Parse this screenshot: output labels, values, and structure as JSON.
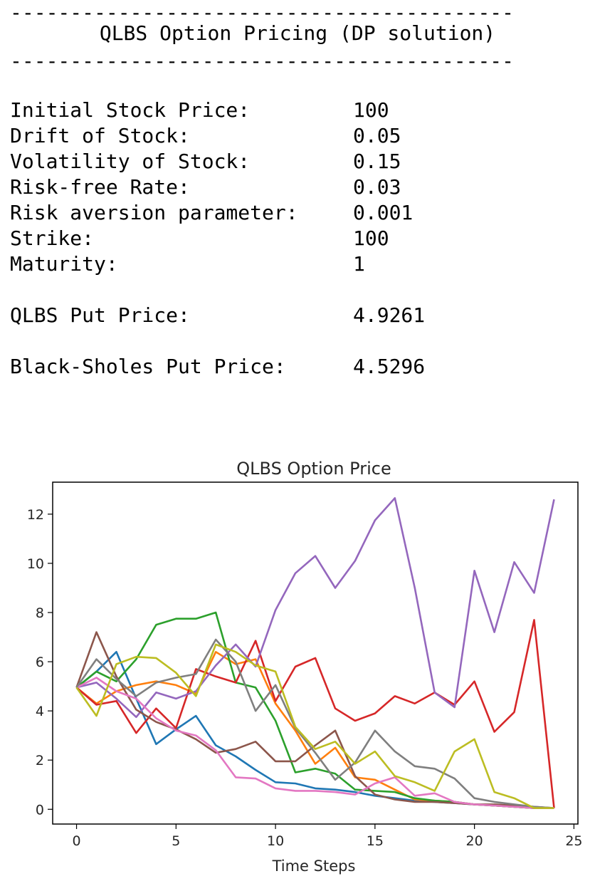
{
  "console": {
    "separator": "------------------------------------------",
    "title": "QLBS Option Pricing (DP solution)",
    "params": [
      {
        "label": "Initial Stock Price:",
        "value": "100"
      },
      {
        "label": "Drift of Stock:",
        "value": "0.05"
      },
      {
        "label": "Volatility of Stock:",
        "value": "0.15"
      },
      {
        "label": "Risk-free Rate:",
        "value": "0.03"
      },
      {
        "label": "Risk aversion parameter:",
        "value": "0.001"
      },
      {
        "label": "Strike:",
        "value": "100"
      },
      {
        "label": "Maturity:",
        "value": "1"
      }
    ],
    "qlbs_put_label": "QLBS Put Price:",
    "qlbs_put_value": "4.9261",
    "bs_put_label": "Black-Sholes Put Price:",
    "bs_put_value": "4.5296"
  },
  "chart_data": {
    "type": "line",
    "title": "QLBS Option Price",
    "xlabel": "Time Steps",
    "ylabel": "",
    "xlim": [
      -1.2,
      25.2
    ],
    "ylim": [
      -0.6,
      13.3
    ],
    "xticks": [
      0,
      5,
      10,
      15,
      20,
      25
    ],
    "yticks": [
      0,
      2,
      4,
      6,
      8,
      10,
      12
    ],
    "grid": false,
    "legend": "none",
    "x": [
      0,
      1,
      2,
      3,
      4,
      5,
      6,
      7,
      8,
      9,
      10,
      11,
      12,
      13,
      14,
      15,
      16,
      17,
      18,
      19,
      20,
      21,
      22,
      23,
      24
    ],
    "series": [
      {
        "color": "#1f77b4",
        "values": [
          4.95,
          5.6,
          6.4,
          4.5,
          2.65,
          3.25,
          3.8,
          2.6,
          2.15,
          1.6,
          1.1,
          1.05,
          0.85,
          0.8,
          0.7,
          0.55,
          0.45,
          0.35,
          0.3,
          0.25,
          0.2,
          0.15,
          0.1,
          0.05,
          0.05
        ]
      },
      {
        "color": "#ff7f0e",
        "values": [
          4.95,
          4.3,
          4.8,
          5.05,
          5.2,
          5.05,
          4.7,
          6.4,
          5.9,
          6.1,
          4.3,
          3.2,
          1.85,
          2.5,
          1.3,
          1.2,
          0.8,
          0.4,
          0.35,
          0.3,
          0.2,
          0.15,
          0.1,
          0.05,
          0.05
        ]
      },
      {
        "color": "#2ca02c",
        "values": [
          4.95,
          5.6,
          5.2,
          6.1,
          7.5,
          7.75,
          7.75,
          8.0,
          5.15,
          4.95,
          3.6,
          1.5,
          1.65,
          1.45,
          0.8,
          0.75,
          0.7,
          0.45,
          0.35,
          0.3,
          0.2,
          0.15,
          0.1,
          0.05,
          0.05
        ]
      },
      {
        "color": "#d62728",
        "values": [
          4.95,
          4.25,
          4.4,
          3.1,
          4.1,
          3.3,
          5.7,
          5.4,
          5.15,
          6.85,
          4.4,
          5.8,
          6.15,
          4.1,
          3.6,
          3.9,
          4.6,
          4.3,
          4.75,
          4.25,
          5.2,
          3.15,
          3.95,
          7.7,
          0.05
        ]
      },
      {
        "color": "#9467bd",
        "values": [
          4.95,
          5.15,
          4.5,
          3.75,
          4.75,
          4.5,
          4.8,
          5.85,
          6.7,
          5.8,
          8.1,
          9.6,
          10.3,
          9.0,
          10.1,
          11.75,
          12.65,
          9.0,
          4.75,
          4.15,
          9.7,
          7.2,
          10.05,
          8.8,
          12.6
        ]
      },
      {
        "color": "#8c564b",
        "values": [
          4.95,
          7.2,
          5.4,
          4.05,
          3.55,
          3.25,
          2.85,
          2.3,
          2.45,
          2.75,
          1.95,
          1.95,
          2.6,
          3.2,
          1.35,
          0.6,
          0.4,
          0.3,
          0.3,
          0.25,
          0.2,
          0.2,
          0.15,
          0.1,
          0.05
        ]
      },
      {
        "color": "#e377c2",
        "values": [
          4.95,
          5.35,
          4.8,
          4.5,
          3.7,
          3.2,
          3.0,
          2.4,
          1.3,
          1.25,
          0.85,
          0.75,
          0.75,
          0.7,
          0.6,
          1.05,
          1.3,
          0.55,
          0.65,
          0.3,
          0.2,
          0.15,
          0.1,
          0.05,
          0.05
        ]
      },
      {
        "color": "#7f7f7f",
        "values": [
          4.95,
          6.1,
          5.3,
          4.6,
          5.15,
          5.35,
          5.5,
          6.9,
          6.0,
          4.0,
          5.05,
          3.3,
          2.3,
          1.2,
          1.9,
          3.2,
          2.35,
          1.75,
          1.65,
          1.25,
          0.45,
          0.3,
          0.2,
          0.1,
          0.05
        ]
      },
      {
        "color": "#bcbd22",
        "values": [
          4.95,
          3.8,
          5.9,
          6.2,
          6.15,
          5.55,
          4.6,
          6.7,
          6.4,
          5.85,
          5.6,
          3.35,
          2.45,
          2.75,
          1.85,
          2.35,
          1.35,
          1.1,
          0.75,
          2.35,
          2.85,
          0.7,
          0.45,
          0.05,
          0.05
        ]
      }
    ]
  }
}
